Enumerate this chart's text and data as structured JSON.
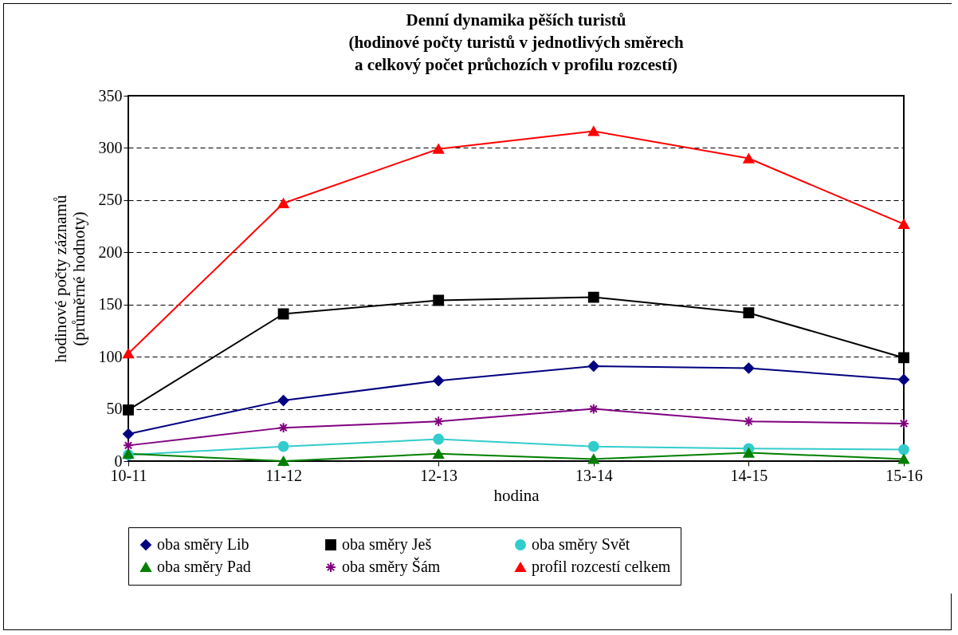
{
  "chart_data": {
    "type": "line",
    "title": "Denní dynamika pěších turistů\n(hodinové počty turistů v jednotlivých směrech\na celkový počet průchozích v profilu rozcestí)",
    "xlabel": "hodina",
    "ylabel": "hodinové počty záznamů\n(průměrné hodnoty)",
    "categories": [
      "10-11",
      "11-12",
      "12-13",
      "13-14",
      "14-15",
      "15-16"
    ],
    "ylim": [
      0,
      350
    ],
    "yticks": [
      0,
      50,
      100,
      150,
      200,
      250,
      300,
      350
    ],
    "grid": "y",
    "legend": "bottom",
    "line_style": "solid",
    "series": [
      {
        "name": "oba směry Lib",
        "color": "#000080",
        "marker": "diamond",
        "values": [
          26,
          58,
          77,
          91,
          89,
          78
        ]
      },
      {
        "name": "oba směry Ješ",
        "color": "#000000",
        "marker": "square",
        "values": [
          49,
          141,
          154,
          157,
          142,
          99
        ]
      },
      {
        "name": "oba směry Svět",
        "color": "#33cccc",
        "marker": "circle",
        "values": [
          6,
          14,
          21,
          14,
          12,
          11
        ]
      },
      {
        "name": "oba směry Pad",
        "color": "#008000",
        "marker": "triangle",
        "values": [
          7,
          0,
          7,
          2,
          8,
          2
        ]
      },
      {
        "name": "oba směry Šám",
        "color": "#800080",
        "marker": "cross",
        "values": [
          15,
          32,
          38,
          50,
          38,
          36
        ]
      },
      {
        "name": "profil rozcestí celkem",
        "color": "#ff0000",
        "marker": "triangle",
        "values": [
          103,
          247,
          299,
          316,
          290,
          227
        ]
      }
    ]
  }
}
